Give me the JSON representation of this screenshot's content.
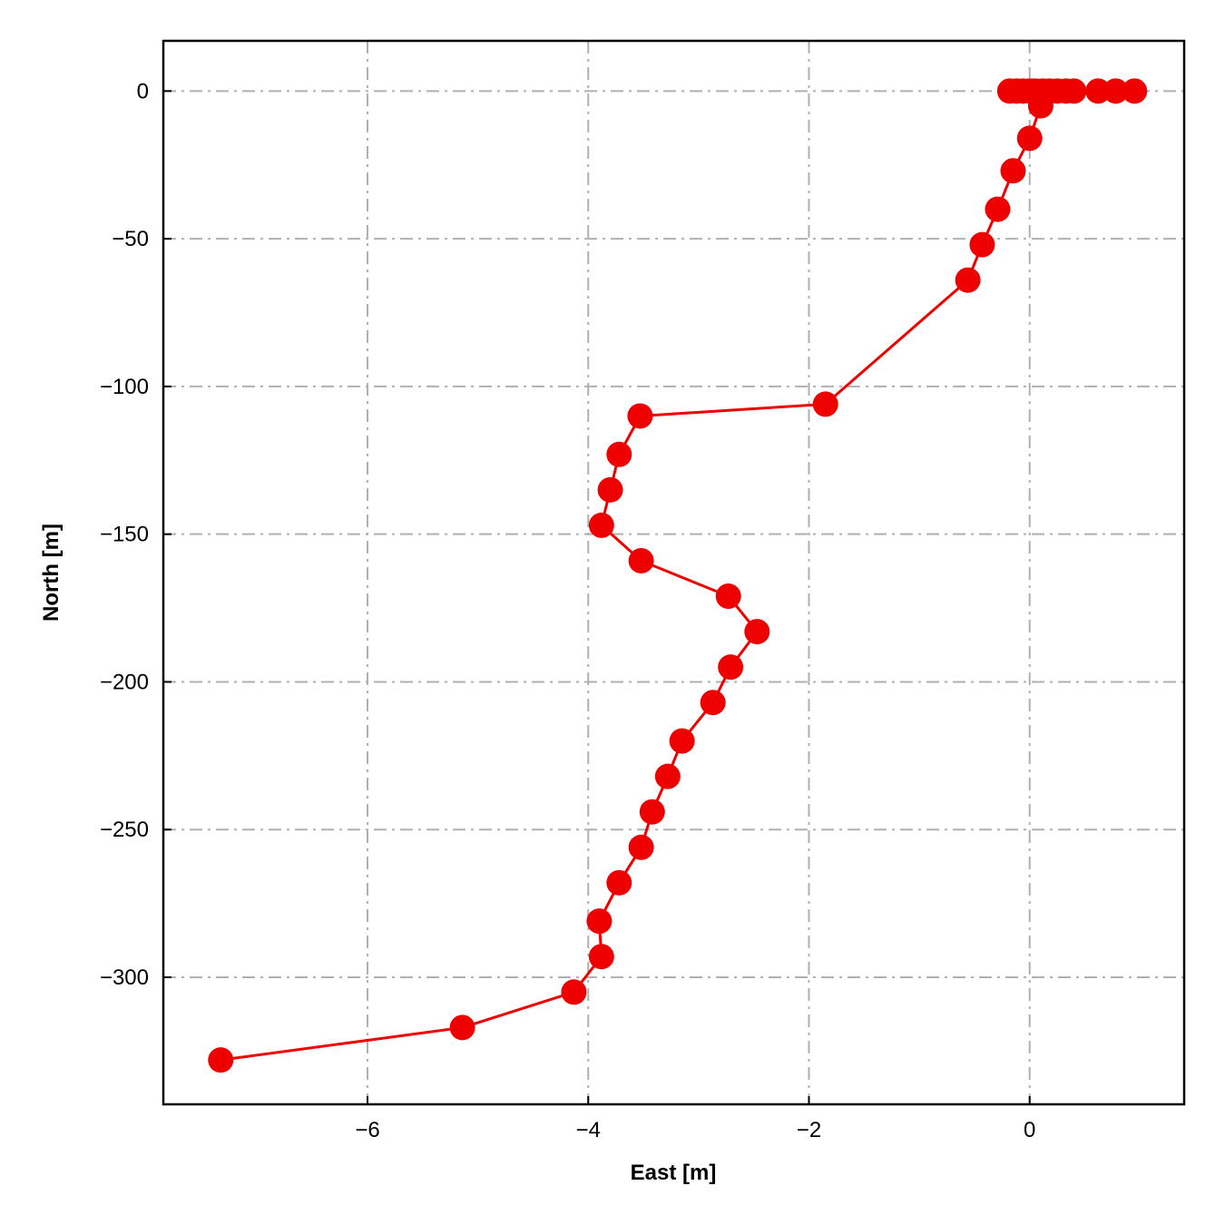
{
  "chart_data": {
    "type": "line",
    "xlabel": "East [m]",
    "ylabel": "North [m]",
    "xlim": [
      -7.85,
      1.4
    ],
    "ylim": [
      -343,
      17
    ],
    "grid": true,
    "x_ticks": [
      -6,
      -4,
      -2,
      0
    ],
    "x_tick_labels": [
      "−6",
      "−4",
      "−2",
      "0"
    ],
    "y_ticks": [
      0,
      -50,
      -100,
      -150,
      -200,
      -250,
      -300
    ],
    "y_tick_labels": [
      "0",
      "−50",
      "−100",
      "−150",
      "−200",
      "−250",
      "−300"
    ],
    "colors": {
      "series": "#ee0000"
    },
    "series": [
      {
        "x": [
          0.95,
          0.78,
          0.62,
          0.4,
          0.33,
          0.25,
          0.18,
          0.12,
          0.05,
          0.0,
          -0.06,
          -0.12,
          -0.18,
          0.1,
          0.0,
          -0.15,
          -0.29,
          -0.43,
          -0.56,
          -1.85,
          -3.53,
          -3.72,
          -3.8,
          -3.88,
          -3.52,
          -2.73,
          -2.47,
          -2.71,
          -2.87,
          -3.15,
          -3.28,
          -3.42,
          -3.52,
          -3.72,
          -3.9,
          -3.88,
          -4.13,
          -5.14,
          -7.33
        ],
        "y": [
          0,
          0,
          0,
          0,
          0,
          0,
          0,
          0,
          0,
          0,
          0,
          0,
          0,
          -5,
          -16,
          -27,
          -40,
          -52,
          -64,
          -106,
          -110,
          -123,
          -135,
          -147,
          -159,
          -171,
          -183,
          -195,
          -207,
          -220,
          -232,
          -244,
          -256,
          -268,
          -281,
          -293,
          -305,
          -317,
          -328
        ]
      }
    ]
  }
}
